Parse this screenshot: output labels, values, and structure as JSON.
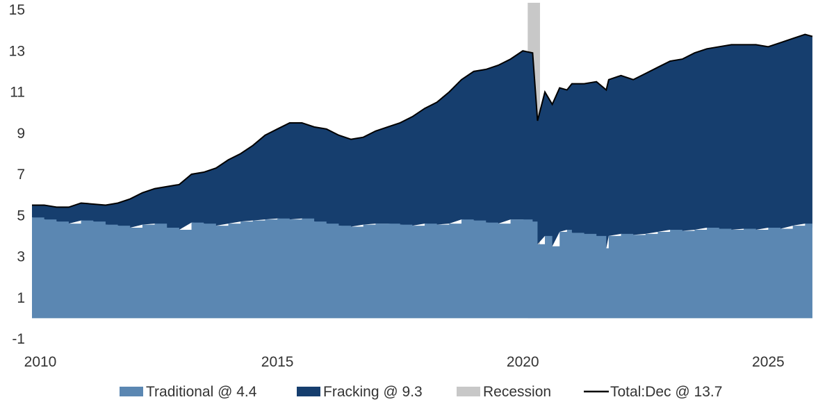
{
  "chart_data": {
    "type": "area",
    "x_range": [
      2010,
      2026
    ],
    "ylim": [
      -1,
      15
    ],
    "yticks": [
      -1,
      1,
      3,
      5,
      7,
      9,
      11,
      13,
      15
    ],
    "xticks": [
      2010,
      2015,
      2020,
      2025
    ],
    "ytick_labels": [
      "-1",
      "1",
      "3",
      "5",
      "7",
      "9",
      "11",
      "13",
      "15"
    ],
    "xtick_labels": [
      "2010",
      "2015",
      "2020",
      "2025"
    ],
    "grid": false,
    "legend_position": "bottom",
    "legend": {
      "traditional": "Traditional @ 4.4",
      "fracking": "Fracking @ 9.3",
      "recession": "Recession",
      "total": "Total:Dec  @ 13.7"
    },
    "colors": {
      "traditional": "#5b87b2",
      "fracking": "#163e6e",
      "recession": "#c8c8c8",
      "total": "#000000"
    },
    "recession_span": [
      2020.1,
      2020.35
    ],
    "series": [
      {
        "name": "Traditional",
        "x": [
          2010.0,
          2010.25,
          2010.5,
          2010.75,
          2011.0,
          2011.25,
          2011.5,
          2011.75,
          2012.0,
          2012.25,
          2012.5,
          2012.75,
          2013.0,
          2013.25,
          2013.5,
          2013.75,
          2014.0,
          2014.25,
          2014.5,
          2014.75,
          2015.0,
          2015.25,
          2015.5,
          2015.75,
          2016.0,
          2016.25,
          2016.5,
          2016.75,
          2017.0,
          2017.25,
          2017.5,
          2017.75,
          2018.0,
          2018.25,
          2018.5,
          2018.75,
          2019.0,
          2019.25,
          2019.5,
          2019.75,
          2020.0,
          2020.2,
          2020.3,
          2020.45,
          2020.6,
          2020.75,
          2020.9,
          2021.0,
          2021.25,
          2021.5,
          2021.7,
          2021.75,
          2022.0,
          2022.25,
          2022.5,
          2022.75,
          2023.0,
          2023.25,
          2023.5,
          2023.75,
          2024.0,
          2024.25,
          2024.5,
          2024.75,
          2025.0,
          2025.25,
          2025.5,
          2025.75,
          2025.9
        ],
        "values": [
          4.9,
          4.8,
          4.7,
          4.6,
          4.75,
          4.7,
          4.55,
          4.5,
          4.4,
          4.55,
          4.6,
          4.4,
          4.3,
          4.65,
          4.6,
          4.5,
          4.6,
          4.7,
          4.75,
          4.8,
          4.85,
          4.8,
          4.85,
          4.7,
          4.6,
          4.5,
          4.45,
          4.55,
          4.6,
          4.6,
          4.55,
          4.5,
          4.6,
          4.55,
          4.6,
          4.8,
          4.75,
          4.65,
          4.6,
          4.8,
          4.8,
          4.7,
          3.6,
          4.0,
          3.5,
          4.2,
          4.3,
          4.15,
          4.1,
          4.0,
          3.4,
          4.0,
          4.1,
          4.05,
          4.1,
          4.2,
          4.3,
          4.25,
          4.3,
          4.4,
          4.35,
          4.3,
          4.35,
          4.3,
          4.4,
          4.35,
          4.5,
          4.6,
          4.4
        ]
      },
      {
        "name": "Total",
        "x": [
          2010.0,
          2010.25,
          2010.5,
          2010.75,
          2011.0,
          2011.25,
          2011.5,
          2011.75,
          2012.0,
          2012.25,
          2012.5,
          2012.75,
          2013.0,
          2013.25,
          2013.5,
          2013.75,
          2014.0,
          2014.25,
          2014.5,
          2014.75,
          2015.0,
          2015.25,
          2015.5,
          2015.75,
          2016.0,
          2016.25,
          2016.5,
          2016.75,
          2017.0,
          2017.25,
          2017.5,
          2017.75,
          2018.0,
          2018.25,
          2018.5,
          2018.75,
          2019.0,
          2019.25,
          2019.5,
          2019.75,
          2020.0,
          2020.2,
          2020.3,
          2020.45,
          2020.6,
          2020.75,
          2020.9,
          2021.0,
          2021.25,
          2021.5,
          2021.7,
          2021.75,
          2022.0,
          2022.25,
          2022.5,
          2022.75,
          2023.0,
          2023.25,
          2023.5,
          2023.75,
          2024.0,
          2024.25,
          2024.5,
          2024.75,
          2025.0,
          2025.25,
          2025.5,
          2025.75,
          2025.9
        ],
        "values": [
          5.5,
          5.5,
          5.4,
          5.4,
          5.6,
          5.55,
          5.5,
          5.6,
          5.8,
          6.1,
          6.3,
          6.4,
          6.5,
          7.0,
          7.1,
          7.3,
          7.7,
          8.0,
          8.4,
          8.9,
          9.2,
          9.5,
          9.5,
          9.3,
          9.2,
          8.9,
          8.7,
          8.8,
          9.1,
          9.3,
          9.5,
          9.8,
          10.2,
          10.5,
          11.0,
          11.6,
          12.0,
          12.1,
          12.3,
          12.6,
          13.0,
          12.9,
          9.6,
          11.0,
          10.4,
          11.2,
          11.1,
          11.4,
          11.4,
          11.5,
          11.1,
          11.6,
          11.8,
          11.6,
          11.9,
          12.2,
          12.5,
          12.6,
          12.9,
          13.1,
          13.2,
          13.3,
          13.3,
          13.3,
          13.2,
          13.4,
          13.6,
          13.8,
          13.7
        ]
      }
    ]
  }
}
